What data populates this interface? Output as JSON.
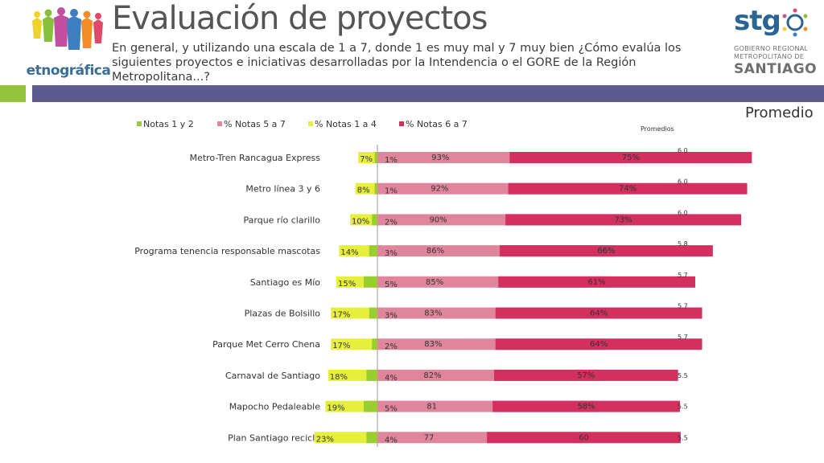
{
  "header": {
    "title": "Evaluación de proyectos",
    "subtitle": "En general, y utilizando una escala de 1 a 7, donde 1 es muy mal y 7 muy bien ¿Cómo evalúa los siguientes proyectos e iniciativas desarrolladas por la Intendencia o el GORE de la Región Metropolitana...?",
    "logo_left_text": "etnográfica",
    "logo_right": {
      "brand": "stg",
      "line1": "GOBIERNO REGIONAL",
      "line2": "METROPOLITANO DE",
      "line3": "SANTIAGO"
    },
    "promedio_label": "Promedio",
    "promedios_small_label": "Promedios"
  },
  "colors": {
    "green_band": "#93c23d",
    "purple_band": "#5c5a8e",
    "notas_1_2": "#9acd32",
    "notas_5_7": "#e0869c",
    "notas_1_4": "#e6f03c",
    "notas_6_7": "#d32f5f"
  },
  "chart_data": {
    "type": "bar",
    "orientation": "horizontal-diverging",
    "legend": [
      "Notas 1 y 2",
      "% Notas 5 a 7",
      "% Notas 1 a 4",
      "% Notas 6 a 7"
    ],
    "legend_position": "top",
    "categories": [
      "Metro-Tren Rancagua Express",
      "Metro línea 3 y 6",
      "Parque río clarillo",
      "Programa tenencia responsable mascotas",
      "Santiago es Mío",
      "Plazas de Bolsillo",
      "Parque Met Cerro Chena",
      "Carnaval de Santiago",
      "Mapocho Pedaleable",
      "Plan Santiago recicla"
    ],
    "series": [
      {
        "name": "Notas 1 y 2",
        "values": [
          1,
          1,
          2,
          3,
          5,
          3,
          2,
          4,
          5,
          4
        ],
        "labels": [
          "1%",
          "1%",
          "2%",
          "3%",
          "5%",
          "3%",
          "2%",
          "4%",
          "5%",
          "4%"
        ]
      },
      {
        "name": "% Notas 5 a 7",
        "values": [
          93,
          92,
          90,
          86,
          85,
          83,
          83,
          82,
          81,
          77
        ],
        "labels": [
          "93%",
          "92%",
          "90%",
          "86%",
          "85%",
          "83%",
          "83%",
          "82%",
          "81",
          "77"
        ]
      },
      {
        "name": "% Notas 1 a 4",
        "values": [
          7,
          8,
          10,
          14,
          15,
          17,
          17,
          18,
          19,
          23
        ],
        "labels": [
          "7%",
          "8%",
          "10%",
          "14%",
          "15%",
          "17%",
          "17%",
          "18%",
          "19%",
          "23%"
        ]
      },
      {
        "name": "% Notas 6 a 7",
        "values": [
          75,
          74,
          73,
          66,
          61,
          64,
          64,
          57,
          58,
          60
        ],
        "labels": [
          "75%",
          "74%",
          "73%",
          "66%",
          "61%",
          "64%",
          "64%",
          "57%",
          "58%",
          "60"
        ]
      }
    ],
    "promedios": [
      "6.0",
      "6.0",
      "6.0",
      "5.8",
      "5.7",
      "5.7",
      "5.7",
      "5.5",
      "5.5",
      "5.5"
    ],
    "xlim": [
      -30,
      100
    ],
    "grid": false
  }
}
